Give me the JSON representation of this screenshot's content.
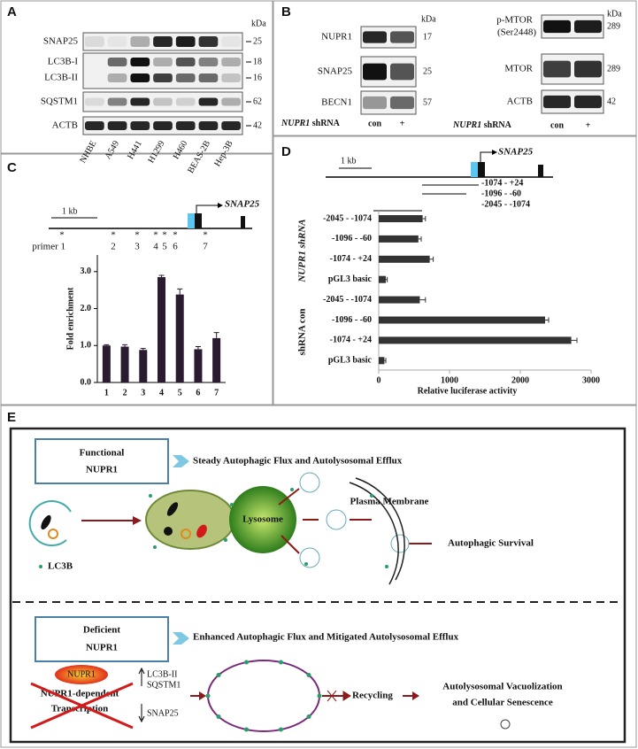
{
  "panel_a": {
    "label": "A",
    "unit": "kDa",
    "rows": [
      {
        "name": "SNAP25",
        "kda": 25
      },
      {
        "name": "LC3B-I",
        "kda": 18
      },
      {
        "name": "LC3B-II",
        "kda": 16
      },
      {
        "name": "SQSTM1",
        "kda": 62
      },
      {
        "name": "ACTB",
        "kda": 42
      }
    ],
    "lanes": [
      "NHBE",
      "A549",
      "H441",
      "H1299",
      "H460",
      "BEAS-2B",
      "Hep-3B"
    ]
  },
  "panel_b": {
    "label": "B",
    "left": {
      "unit": "kDa",
      "rows": [
        {
          "name": "NUPR1",
          "kda": 17
        },
        {
          "name": "SNAP25",
          "kda": 25
        },
        {
          "name": "BECN1",
          "kda": 57
        }
      ],
      "gene": "NUPR1",
      "treatment": "shRNA",
      "lanes": [
        "con",
        "+"
      ]
    },
    "right": {
      "unit": "kDa",
      "rows": [
        {
          "name": "p-MTOR",
          "sub": "(Ser2448)",
          "kda": 289
        },
        {
          "name": "MTOR",
          "kda": 289
        },
        {
          "name": "ACTB",
          "kda": 42
        }
      ],
      "gene": "NUPR1",
      "treatment": "shRNA",
      "lanes": [
        "con",
        "+"
      ]
    }
  },
  "panel_c": {
    "label": "C",
    "scale": "1 kb",
    "gene": "SNAP25",
    "mark": "*",
    "primers": [
      "primer 1",
      "2",
      "3",
      "4",
      "5",
      "6",
      "7"
    ]
  },
  "panel_d": {
    "label": "D",
    "scale": "1 kb",
    "gene": "SNAP25",
    "constructs": [
      "-1074 - +24",
      "-1096 - -60",
      "-2045 - -1074"
    ],
    "groups": [
      "NUPR1 shRNA",
      "shRNA con"
    ]
  },
  "chart_data": [
    {
      "type": "bar",
      "ylabel": "Fold enrichment",
      "color": "#2b1b30",
      "categories": [
        "1",
        "2",
        "3",
        "4",
        "5",
        "6",
        "7"
      ],
      "values": [
        1.0,
        0.97,
        0.88,
        2.85,
        2.38,
        0.9,
        1.2
      ],
      "errors": [
        0.02,
        0.05,
        0.04,
        0.05,
        0.15,
        0.07,
        0.15
      ],
      "ylim": [
        0,
        3.45
      ],
      "yticks": [
        {
          "value": 0,
          "label": "0.0"
        },
        {
          "value": 1,
          "label": "1.0"
        },
        {
          "value": 2,
          "label": "2.0"
        },
        {
          "value": 3,
          "label": "3.0"
        }
      ]
    },
    {
      "type": "barh",
      "xlabel": "Relative luciferase activity",
      "color": "#333333",
      "categories": [
        "-2045 - -1074",
        "-1096 - -60",
        "-1074 - +24",
        "pGL3 basic",
        "-2045 - -1074",
        "-1096 - -60",
        "-1074 - +24",
        "pGL3 basic"
      ],
      "values": [
        620,
        560,
        720,
        100,
        580,
        2350,
        2720,
        80
      ],
      "errors": [
        40,
        40,
        50,
        20,
        80,
        50,
        80,
        20
      ],
      "xlim": [
        0,
        3000
      ],
      "xticks": [
        0,
        1000,
        2000,
        3000
      ]
    }
  ],
  "panel_e": {
    "label": "E",
    "top": {
      "state": [
        "Functional",
        "NUPR1"
      ],
      "summary": "Steady Autophagic Flux and Autolysosomal Efflux",
      "membrane": "Plasma Membrane",
      "lysosome": "Lysosome",
      "marker": "LC3B",
      "outcome": "Autophagic Survival"
    },
    "bottom": {
      "state": [
        "Deficient",
        "NUPR1"
      ],
      "summary": "Enhanced Autophagic Flux and Mitigated Autolysosomal Efflux",
      "protein": "NUPR1",
      "transcription": [
        "NUPR1-dependent",
        "Transcription"
      ],
      "up": [
        "LC3B-II",
        "SQSTM1"
      ],
      "down": "SNAP25",
      "process": "Recycling",
      "outcome": [
        "Autolysosomal Vacuolization",
        "and Cellular Senescence"
      ]
    }
  }
}
